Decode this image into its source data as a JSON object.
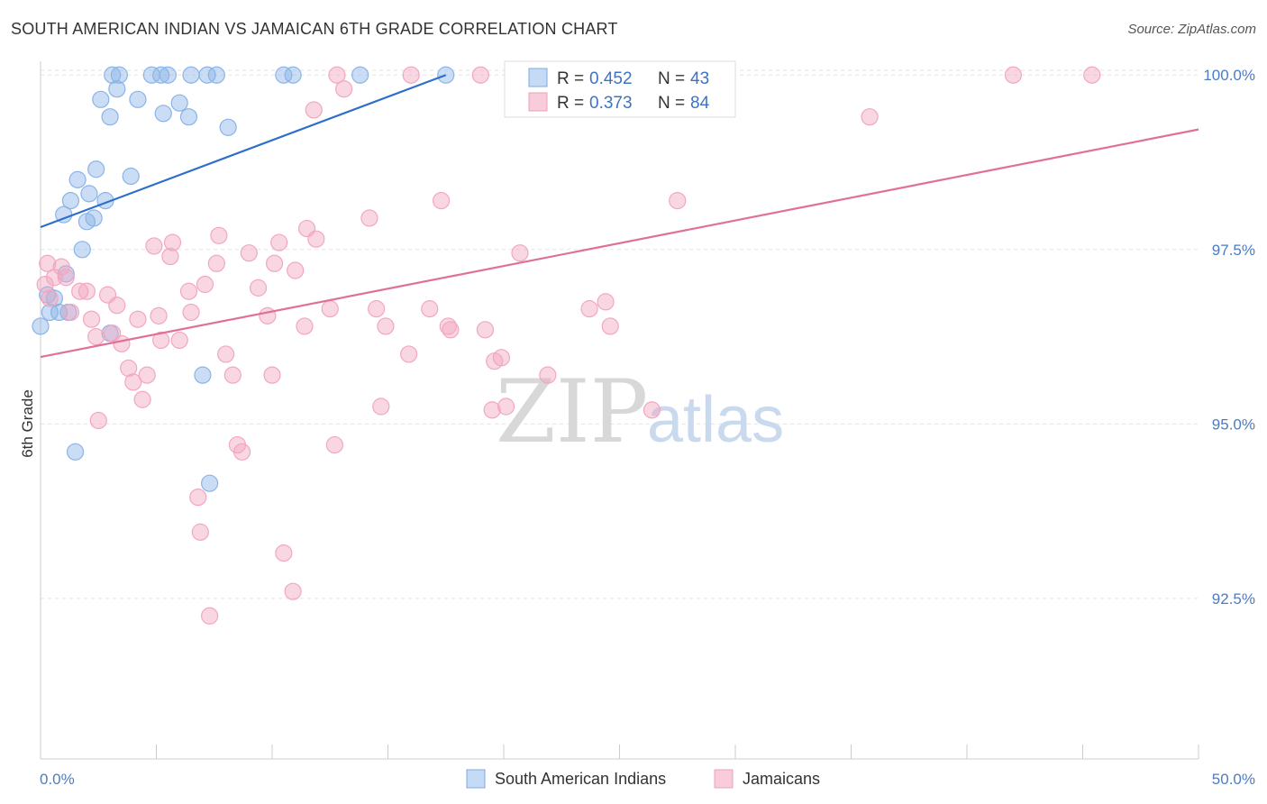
{
  "title": "SOUTH AMERICAN INDIAN VS JAMAICAN 6TH GRADE CORRELATION CHART",
  "source": "Source: ZipAtlas.com",
  "watermark": {
    "zip": "ZIP",
    "atlas": "atlas"
  },
  "legend_top": {
    "row1": {
      "r_label": "R = ",
      "r_value": "0.452",
      "n_label": "N = ",
      "n_value": "43"
    },
    "row2": {
      "r_label": "R = ",
      "r_value": "0.373",
      "n_label": "N = ",
      "n_value": "84"
    }
  },
  "chart_data": {
    "type": "scatter",
    "title": "SOUTH AMERICAN INDIAN VS JAMAICAN 6TH GRADE CORRELATION CHART",
    "xlabel": "",
    "ylabel": "6th Grade",
    "xlim": [
      0,
      50
    ],
    "ylim": [
      90.2,
      100.3
    ],
    "x_tick_labels": [
      "0.0%",
      "50.0%"
    ],
    "y_ticks": [
      92.5,
      95.0,
      97.5,
      100.0
    ],
    "y_tick_labels": [
      "92.5%",
      "95.0%",
      "97.5%",
      "100.0%"
    ],
    "grid": true,
    "legend_position": "bottom-center",
    "series": [
      {
        "name": "South American Indians",
        "color": "#8ab4e8",
        "line_color": "#2e6fcc",
        "r": 0.452,
        "n": 43,
        "trend": {
          "x": [
            0,
            17.5
          ],
          "y": [
            97.82,
            100.0
          ]
        },
        "points": [
          [
            0,
            96.4
          ],
          [
            0.3,
            96.85
          ],
          [
            0.4,
            96.6
          ],
          [
            0.6,
            96.8
          ],
          [
            0.8,
            96.6
          ],
          [
            1.0,
            98.0
          ],
          [
            1.1,
            97.15
          ],
          [
            1.2,
            96.6
          ],
          [
            1.3,
            98.2
          ],
          [
            1.5,
            94.6
          ],
          [
            1.6,
            98.5
          ],
          [
            1.8,
            97.5
          ],
          [
            2.0,
            97.9
          ],
          [
            2.1,
            98.3
          ],
          [
            2.3,
            97.95
          ],
          [
            2.4,
            98.65
          ],
          [
            2.6,
            99.65
          ],
          [
            2.8,
            98.2
          ],
          [
            3.0,
            99.4
          ],
          [
            3.0,
            96.3
          ],
          [
            3.1,
            100.0
          ],
          [
            3.3,
            99.8
          ],
          [
            3.4,
            100.0
          ],
          [
            3.9,
            98.55
          ],
          [
            4.2,
            99.65
          ],
          [
            4.8,
            100.0
          ],
          [
            5.2,
            100.0
          ],
          [
            5.3,
            99.45
          ],
          [
            5.5,
            100.0
          ],
          [
            6.0,
            99.6
          ],
          [
            6.4,
            99.4
          ],
          [
            6.5,
            100.0
          ],
          [
            7.0,
            95.7
          ],
          [
            7.2,
            100.0
          ],
          [
            7.3,
            94.15
          ],
          [
            7.6,
            100.0
          ],
          [
            8.1,
            99.25
          ],
          [
            10.5,
            100.0
          ],
          [
            10.9,
            100.0
          ],
          [
            13.8,
            100.0
          ],
          [
            17.5,
            100.0
          ],
          [
            22.5,
            100.0
          ],
          [
            25.2,
            100.0
          ]
        ]
      },
      {
        "name": "Jamaicans",
        "color": "#f2a7bf",
        "line_color": "#e0709a",
        "r": 0.373,
        "n": 84,
        "trend": {
          "x": [
            0,
            50
          ],
          "y": [
            95.96,
            99.22
          ]
        },
        "points": [
          [
            0.2,
            97.0
          ],
          [
            0.3,
            97.3
          ],
          [
            0.4,
            96.8
          ],
          [
            0.6,
            97.1
          ],
          [
            0.9,
            97.25
          ],
          [
            1.1,
            97.1
          ],
          [
            1.3,
            96.6
          ],
          [
            1.7,
            96.9
          ],
          [
            2.0,
            96.9
          ],
          [
            2.2,
            96.5
          ],
          [
            2.4,
            96.25
          ],
          [
            2.5,
            95.05
          ],
          [
            2.9,
            96.85
          ],
          [
            3.1,
            96.3
          ],
          [
            3.3,
            96.7
          ],
          [
            3.5,
            96.15
          ],
          [
            3.8,
            95.8
          ],
          [
            4.0,
            95.6
          ],
          [
            4.2,
            96.5
          ],
          [
            4.4,
            95.35
          ],
          [
            4.6,
            95.7
          ],
          [
            4.9,
            97.55
          ],
          [
            5.1,
            96.55
          ],
          [
            5.2,
            96.2
          ],
          [
            5.6,
            97.4
          ],
          [
            5.7,
            97.6
          ],
          [
            6.0,
            96.2
          ],
          [
            6.4,
            96.9
          ],
          [
            6.5,
            96.6
          ],
          [
            6.8,
            93.95
          ],
          [
            6.9,
            93.45
          ],
          [
            7.1,
            97.0
          ],
          [
            7.3,
            92.25
          ],
          [
            7.6,
            97.3
          ],
          [
            7.7,
            97.7
          ],
          [
            8.0,
            96.0
          ],
          [
            8.3,
            95.7
          ],
          [
            8.5,
            94.7
          ],
          [
            8.7,
            94.6
          ],
          [
            9.0,
            97.45
          ],
          [
            9.4,
            96.95
          ],
          [
            9.8,
            96.55
          ],
          [
            10.0,
            95.7
          ],
          [
            10.1,
            97.3
          ],
          [
            10.3,
            97.6
          ],
          [
            10.5,
            93.15
          ],
          [
            10.9,
            92.6
          ],
          [
            11.0,
            97.2
          ],
          [
            11.4,
            96.4
          ],
          [
            11.5,
            97.8
          ],
          [
            11.8,
            99.5
          ],
          [
            11.9,
            97.65
          ],
          [
            12.5,
            96.65
          ],
          [
            12.7,
            94.7
          ],
          [
            12.8,
            100.0
          ],
          [
            13.1,
            99.8
          ],
          [
            14.2,
            97.95
          ],
          [
            14.5,
            96.65
          ],
          [
            14.7,
            95.25
          ],
          [
            14.9,
            96.4
          ],
          [
            15.9,
            96.0
          ],
          [
            16.0,
            100.0
          ],
          [
            16.8,
            96.65
          ],
          [
            17.3,
            98.2
          ],
          [
            17.6,
            96.4
          ],
          [
            17.7,
            96.35
          ],
          [
            19.0,
            100.0
          ],
          [
            19.2,
            96.35
          ],
          [
            19.5,
            95.2
          ],
          [
            19.6,
            95.9
          ],
          [
            19.9,
            95.95
          ],
          [
            20.1,
            95.25
          ],
          [
            20.7,
            97.45
          ],
          [
            21.9,
            95.7
          ],
          [
            23.5,
            100.0
          ],
          [
            23.7,
            96.65
          ],
          [
            24.4,
            96.75
          ],
          [
            24.6,
            96.4
          ],
          [
            26.4,
            95.2
          ],
          [
            27.3,
            100.0
          ],
          [
            27.5,
            98.2
          ],
          [
            35.8,
            99.4
          ],
          [
            42.0,
            100.0
          ],
          [
            45.4,
            100.0
          ]
        ]
      }
    ]
  }
}
